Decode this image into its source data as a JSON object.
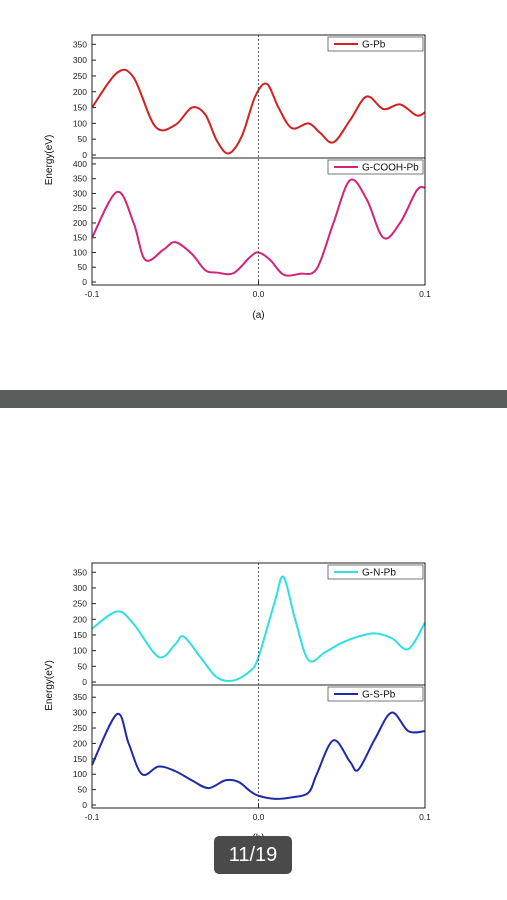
{
  "pager": {
    "label": "11/19"
  },
  "colors": {
    "background": "#ffffff",
    "divider": "#5a5d5e",
    "pager_bg": "#4a4a4a"
  },
  "chart_data": [
    {
      "type": "line",
      "figure_label": "(a)",
      "ylabel": "Energy(eV)",
      "x_ticks": [
        "-0.1",
        "0.0",
        "0.1"
      ],
      "xlim": [
        -0.1,
        0.1
      ],
      "reference_line_x": 0.0,
      "panels": [
        {
          "series": [
            {
              "name": "G-Pb",
              "color": "#d42020",
              "x": [
                -0.1,
                -0.085,
                -0.075,
                -0.062,
                -0.05,
                -0.04,
                -0.032,
                -0.025,
                -0.018,
                -0.01,
                -0.002,
                0.005,
                0.012,
                0.02,
                0.03,
                0.037,
                0.045,
                0.055,
                0.065,
                0.075,
                0.085,
                0.095,
                0.1
              ],
              "y": [
                150,
                260,
                245,
                90,
                95,
                150,
                128,
                45,
                5,
                60,
                185,
                225,
                150,
                85,
                100,
                70,
                40,
                110,
                185,
                145,
                160,
                125,
                135
              ]
            }
          ],
          "yticks": [
            0,
            50,
            100,
            150,
            200,
            250,
            300,
            350
          ],
          "ylim": [
            0,
            370
          ],
          "legend": "top-right"
        },
        {
          "series": [
            {
              "name": "G-COOH-Pb",
              "color": "#d4237a",
              "x": [
                -0.1,
                -0.085,
                -0.075,
                -0.068,
                -0.057,
                -0.05,
                -0.04,
                -0.032,
                -0.025,
                -0.015,
                -0.005,
                0.0,
                0.007,
                0.015,
                0.025,
                0.035,
                0.045,
                0.055,
                0.065,
                0.075,
                0.085,
                0.095,
                0.1
              ],
              "y": [
                150,
                305,
                200,
                75,
                110,
                135,
                95,
                40,
                32,
                30,
                85,
                100,
                75,
                25,
                28,
                45,
                200,
                345,
                280,
                150,
                200,
                310,
                320
              ]
            }
          ],
          "yticks": [
            0,
            50,
            100,
            150,
            200,
            250,
            300,
            350,
            400
          ],
          "ylim": [
            0,
            410
          ],
          "legend": "top-right"
        }
      ]
    },
    {
      "type": "line",
      "figure_label": "(b)",
      "ylabel": "Energy(eV)",
      "x_ticks": [
        "-0.1",
        "0.0",
        "0.1"
      ],
      "xlim": [
        -0.1,
        0.1
      ],
      "reference_line_x": 0.0,
      "panels": [
        {
          "series": [
            {
              "name": "G-N-Pb",
              "color": "#2ee0e0",
              "x": [
                -0.1,
                -0.085,
                -0.075,
                -0.06,
                -0.05,
                -0.045,
                -0.035,
                -0.025,
                -0.015,
                -0.005,
                0.0,
                0.01,
                0.015,
                0.022,
                0.03,
                0.04,
                0.05,
                0.06,
                0.07,
                0.08,
                0.09,
                0.1
              ],
              "y": [
                170,
                225,
                185,
                80,
                120,
                145,
                80,
                15,
                5,
                35,
                80,
                260,
                335,
                200,
                70,
                95,
                125,
                145,
                155,
                140,
                105,
                190
              ]
            }
          ],
          "yticks": [
            0,
            50,
            100,
            150,
            200,
            250,
            300,
            350
          ],
          "ylim": [
            0,
            370
          ],
          "legend": "top-right"
        },
        {
          "series": [
            {
              "name": "G-S-Pb",
              "color": "#1f2aa8",
              "x": [
                -0.1,
                -0.085,
                -0.078,
                -0.07,
                -0.06,
                -0.05,
                -0.04,
                -0.03,
                -0.02,
                -0.012,
                -0.005,
                0.0,
                0.01,
                0.02,
                0.03,
                0.035,
                0.045,
                0.055,
                0.06,
                0.07,
                0.08,
                0.09,
                0.1
              ],
              "y": [
                130,
                295,
                200,
                100,
                125,
                110,
                80,
                55,
                80,
                75,
                45,
                30,
                20,
                25,
                40,
                100,
                210,
                140,
                115,
                215,
                300,
                240,
                240
              ]
            }
          ],
          "yticks": [
            0,
            50,
            100,
            150,
            200,
            250,
            300,
            350
          ],
          "ylim": [
            0,
            380
          ],
          "legend": "top-right"
        }
      ]
    }
  ]
}
